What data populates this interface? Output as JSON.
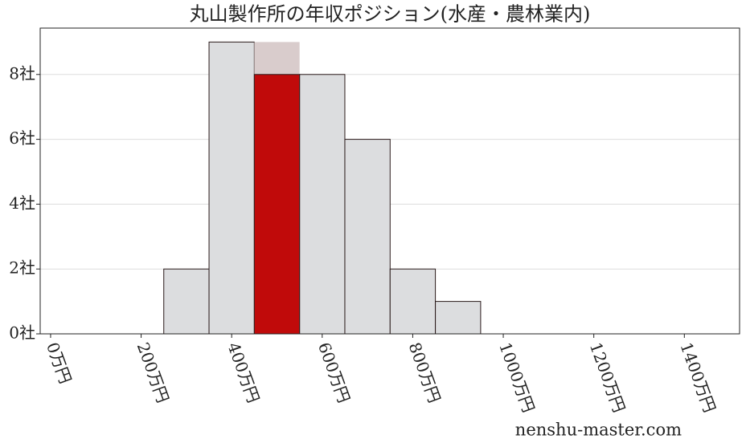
{
  "chart_data": {
    "type": "histogram",
    "title": "丸山製作所の年収ポジション(水産・農林業内)",
    "watermark": "nenshu-master.com",
    "bins": [
      250,
      350,
      450,
      550,
      650,
      750,
      850,
      950
    ],
    "series": [
      {
        "color": "#dcdddf",
        "values": [
          2,
          9,
          9,
          8,
          6,
          2,
          1
        ]
      },
      {
        "color": "#c00a0a",
        "values": [
          null,
          null,
          8,
          null,
          null,
          null,
          null
        ]
      }
    ],
    "xlim": [
      -23,
      1522
    ],
    "xticks": [
      {
        "value": 0,
        "label": "0万円"
      },
      {
        "value": 200,
        "label": "200万円"
      },
      {
        "value": 400,
        "label": "400万円"
      },
      {
        "value": 600,
        "label": "600万円"
      },
      {
        "value": 800,
        "label": "800万円"
      },
      {
        "value": 1000,
        "label": "1000万円"
      },
      {
        "value": 1200,
        "label": "1200万円"
      },
      {
        "value": 1400,
        "label": "1400万円"
      }
    ],
    "ylim": [
      0,
      9.43
    ],
    "yticks": [
      {
        "value": 0,
        "label": "0社"
      },
      {
        "value": 2,
        "label": "2社"
      },
      {
        "value": 4,
        "label": "4社"
      },
      {
        "value": 6,
        "label": "6社"
      },
      {
        "value": 8,
        "label": "8社"
      }
    ],
    "grid": true
  }
}
